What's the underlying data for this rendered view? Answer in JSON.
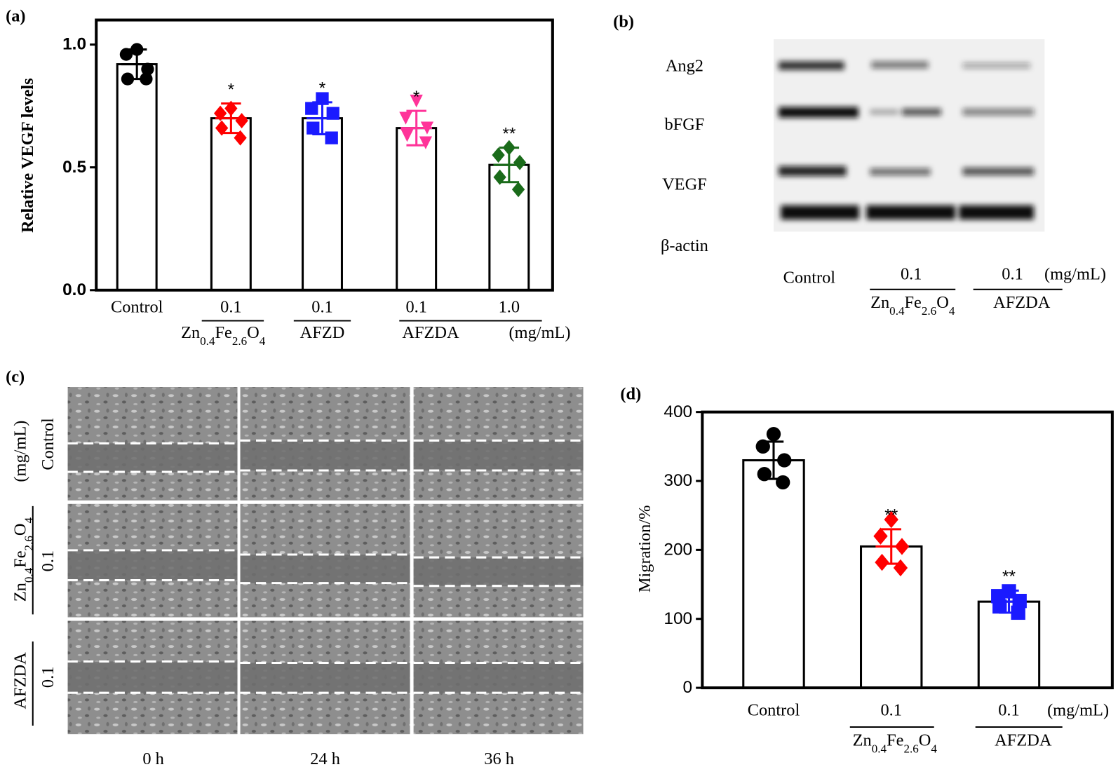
{
  "chart_data": [
    {
      "type": "bar",
      "panel": "(a)",
      "ylabel": "Relative VEGF levels",
      "categories": [
        "Control",
        "0.1",
        "0.1",
        "0.1",
        "1.0"
      ],
      "values": [
        0.92,
        0.7,
        0.7,
        0.66,
        0.51
      ],
      "errors": [
        0.06,
        0.06,
        0.065,
        0.07,
        0.07
      ],
      "points": [
        [
          0.98,
          0.96,
          0.9,
          0.86,
          0.86
        ],
        [
          0.74,
          0.72,
          0.69,
          0.66,
          0.62
        ],
        [
          0.78,
          0.74,
          0.72,
          0.66,
          0.62
        ],
        [
          0.77,
          0.7,
          0.66,
          0.63,
          0.6
        ],
        [
          0.58,
          0.55,
          0.52,
          0.46,
          0.41
        ]
      ],
      "colors": [
        "#000000",
        "#ff0000",
        "#1a1aff",
        "#ff3399",
        "#1a6b1a"
      ],
      "markers": [
        "circle",
        "diamond",
        "square",
        "triangle-down",
        "diamond"
      ],
      "annotations": [
        null,
        "*",
        "*",
        "*",
        "**"
      ],
      "groups": [
        "Zn0.4Fe2.6O4",
        "AFZD",
        "AFZDA"
      ],
      "unit": "(mg/mL)",
      "ylim": [
        0,
        1.1
      ],
      "yticks": [
        {
          "value": 0,
          "label": "0.0"
        },
        {
          "value": 0.5,
          "label": "0.5"
        },
        {
          "value": 1,
          "label": "1.0"
        }
      ]
    },
    {
      "type": "bar",
      "panel": "(d)",
      "ylabel": "Migration/%",
      "categories": [
        "Control",
        "0.1",
        "0.1"
      ],
      "values": [
        330,
        205,
        125
      ],
      "errors": [
        27,
        25,
        16
      ],
      "points": [
        [
          368,
          350,
          330,
          310,
          298
        ],
        [
          244,
          220,
          205,
          182,
          174
        ],
        [
          140,
          133,
          126,
          118,
          109
        ]
      ],
      "colors": [
        "#000000",
        "#ff0000",
        "#1a1aff"
      ],
      "markers": [
        "circle",
        "diamond",
        "square"
      ],
      "annotations": [
        null,
        "**",
        "**"
      ],
      "groups": [
        "Zn0.4Fe2.6O4",
        "AFZDA"
      ],
      "unit": "(mg/mL)",
      "ylim": [
        0,
        400
      ],
      "yticks": [
        0,
        100,
        200,
        300,
        400
      ]
    }
  ],
  "blot": {
    "panel": "(b)",
    "proteins": [
      "Ang2",
      "bFGF",
      "VEGF",
      "β-actin"
    ],
    "lanes": [
      "Control",
      "0.1",
      "0.1"
    ],
    "groups": [
      "Zn0.4Fe2.6O4",
      "AFZDA"
    ],
    "unit": "(mg/mL)"
  },
  "scratch": {
    "panel": "(c)",
    "times": [
      "0 h",
      "24 h",
      "36 h"
    ],
    "rows": [
      "Control",
      "0.1",
      "0.1"
    ],
    "groups": [
      "Zn0.4Fe2.6O4",
      "AFZDA"
    ],
    "unit": "(mg/mL)"
  }
}
